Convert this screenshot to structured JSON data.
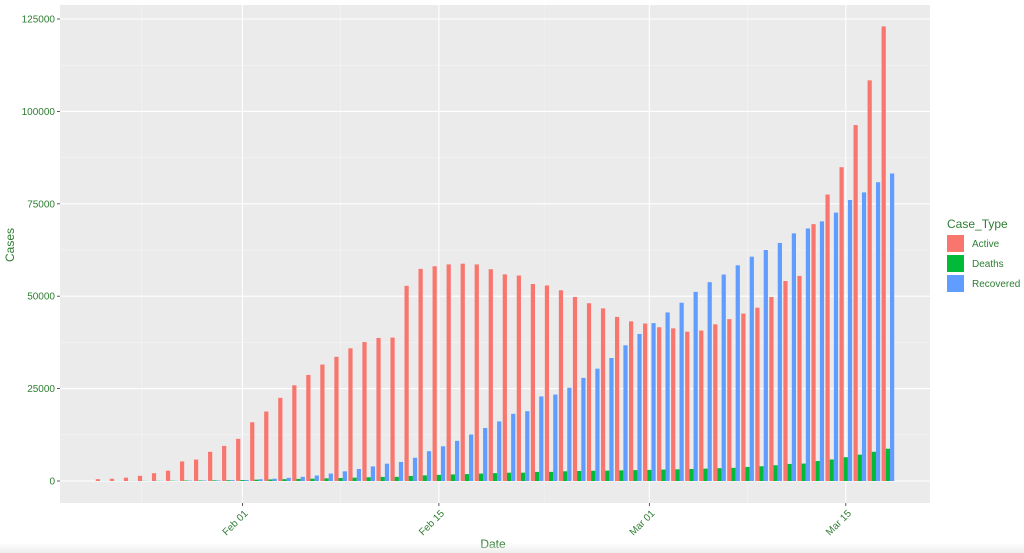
{
  "chart_data": {
    "type": "bar",
    "title": "",
    "xlabel": "Date",
    "ylabel": "Cases",
    "ylim": [
      0,
      130000
    ],
    "y_ticks": [
      0,
      25000,
      50000,
      75000,
      100000,
      125000
    ],
    "y_tick_labels": [
      "0",
      "25000",
      "50000",
      "75000",
      "100000",
      "125000"
    ],
    "x_range": [
      "2020-01-19",
      "2020-03-21"
    ],
    "x_ticks": [
      "2020-02-01",
      "2020-02-15",
      "2020-03-01",
      "2020-03-15"
    ],
    "x_tick_labels": [
      "Feb 01",
      "Feb 15",
      "Mar 01",
      "Mar 15"
    ],
    "grid": true,
    "legend": {
      "title": "Case_Type",
      "position": "right"
    },
    "categories": [
      "2020-01-22",
      "2020-01-23",
      "2020-01-24",
      "2020-01-25",
      "2020-01-26",
      "2020-01-27",
      "2020-01-28",
      "2020-01-29",
      "2020-01-30",
      "2020-01-31",
      "2020-02-01",
      "2020-02-02",
      "2020-02-03",
      "2020-02-04",
      "2020-02-05",
      "2020-02-06",
      "2020-02-07",
      "2020-02-08",
      "2020-02-09",
      "2020-02-10",
      "2020-02-11",
      "2020-02-12",
      "2020-02-13",
      "2020-02-14",
      "2020-02-15",
      "2020-02-16",
      "2020-02-17",
      "2020-02-18",
      "2020-02-19",
      "2020-02-20",
      "2020-02-21",
      "2020-02-22",
      "2020-02-23",
      "2020-02-24",
      "2020-02-25",
      "2020-02-26",
      "2020-02-27",
      "2020-02-28",
      "2020-02-29",
      "2020-03-01",
      "2020-03-02",
      "2020-03-03",
      "2020-03-04",
      "2020-03-05",
      "2020-03-06",
      "2020-03-07",
      "2020-03-08",
      "2020-03-09",
      "2020-03-10",
      "2020-03-11",
      "2020-03-12",
      "2020-03-13",
      "2020-03-14",
      "2020-03-15",
      "2020-03-16",
      "2020-03-17",
      "2020-03-18"
    ],
    "series": [
      {
        "name": "Active",
        "color": "#F8766D",
        "values": [
          500,
          600,
          900,
          1400,
          2100,
          2800,
          5300,
          5800,
          7900,
          9500,
          11400,
          15900,
          18800,
          22500,
          25900,
          28700,
          31500,
          33600,
          35900,
          37600,
          38700,
          38800,
          52800,
          57400,
          58100,
          58600,
          58800,
          58600,
          57300,
          55900,
          55600,
          53300,
          52900,
          51600,
          49800,
          48100,
          46700,
          44400,
          43200,
          42600,
          41600,
          41300,
          40400,
          40700,
          42400,
          43800,
          45300,
          46900,
          49800,
          54100,
          55500,
          69500,
          77500,
          84900,
          96300,
          108400,
          123000
        ]
      },
      {
        "name": "Deaths",
        "color": "#00BA38",
        "values": [
          17,
          18,
          26,
          42,
          56,
          82,
          131,
          133,
          171,
          213,
          259,
          362,
          426,
          492,
          564,
          634,
          719,
          806,
          906,
          1013,
          1113,
          1118,
          1371,
          1523,
          1666,
          1770,
          1868,
          2007,
          2122,
          2247,
          2251,
          2458,
          2469,
          2629,
          2708,
          2770,
          2814,
          2872,
          2941,
          2996,
          3085,
          3160,
          3254,
          3348,
          3460,
          3558,
          3802,
          3988,
          4262,
          4615,
          4720,
          5404,
          5819,
          6440,
          7126,
          7905,
          8733
        ]
      },
      {
        "name": "Recovered",
        "color": "#619CFF",
        "values": [
          28,
          30,
          36,
          39,
          52,
          61,
          107,
          126,
          143,
          222,
          284,
          472,
          623,
          852,
          1124,
          1487,
          2011,
          2616,
          3244,
          3946,
          4683,
          5150,
          6295,
          8058,
          9395,
          10865,
          12583,
          14352,
          16121,
          18177,
          18890,
          22886,
          23394,
          25227,
          27905,
          30384,
          33277,
          36711,
          39782,
          42716,
          45602,
          48228,
          51170,
          53796,
          55865,
          58358,
          60694,
          62494,
          64404,
          67003,
          68324,
          70251,
          72624,
          76034,
          78088,
          80840,
          83207
        ]
      }
    ]
  }
}
